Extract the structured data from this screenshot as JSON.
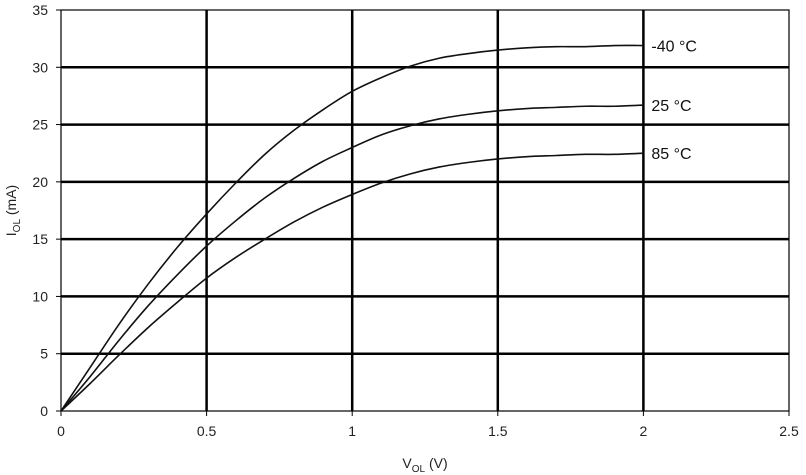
{
  "chart_data": {
    "type": "line",
    "xlabel": {
      "main": "V",
      "sub": "OL",
      "unit": " (V)"
    },
    "ylabel": {
      "main": "I",
      "sub": "OL",
      "unit": " (mA)"
    },
    "xlim": [
      0,
      2.5
    ],
    "ylim": [
      0,
      35
    ],
    "x_ticks": [
      0,
      0.5,
      1,
      1.5,
      2,
      2.5
    ],
    "x_tick_labels": [
      "0",
      "0.5",
      "1",
      "1.5",
      "2",
      "2.5"
    ],
    "y_ticks": [
      0,
      5,
      10,
      15,
      20,
      25,
      30,
      35
    ],
    "y_tick_labels": [
      "0",
      "5",
      "10",
      "15",
      "20",
      "25",
      "30",
      "35"
    ],
    "grid": true,
    "series": [
      {
        "name": "-40 °C",
        "x": [
          0,
          0.1,
          0.2,
          0.3,
          0.4,
          0.5,
          0.6,
          0.7,
          0.8,
          0.9,
          1.0,
          1.1,
          1.2,
          1.3,
          1.4,
          1.5,
          1.6,
          1.7,
          1.8,
          1.9,
          2.0
        ],
        "y": [
          0,
          3.8,
          7.6,
          11.1,
          14.3,
          17.2,
          19.9,
          22.4,
          24.5,
          26.3,
          27.9,
          29.1,
          30.1,
          30.8,
          31.2,
          31.5,
          31.7,
          31.8,
          31.8,
          31.9,
          31.9
        ]
      },
      {
        "name": "25 °C",
        "x": [
          0,
          0.1,
          0.2,
          0.3,
          0.4,
          0.5,
          0.6,
          0.7,
          0.8,
          0.9,
          1.0,
          1.1,
          1.2,
          1.3,
          1.4,
          1.5,
          1.6,
          1.7,
          1.8,
          1.9,
          2.0
        ],
        "y": [
          0,
          3.0,
          6.2,
          9.2,
          11.9,
          14.4,
          16.6,
          18.6,
          20.3,
          21.8,
          23.0,
          24.1,
          24.9,
          25.5,
          25.9,
          26.2,
          26.4,
          26.5,
          26.6,
          26.6,
          26.7
        ]
      },
      {
        "name": "85 °C",
        "x": [
          0,
          0.1,
          0.2,
          0.3,
          0.4,
          0.5,
          0.6,
          0.7,
          0.8,
          0.9,
          1.0,
          1.1,
          1.2,
          1.3,
          1.4,
          1.5,
          1.6,
          1.7,
          1.8,
          1.9,
          2.0
        ],
        "y": [
          0,
          2.4,
          4.9,
          7.3,
          9.5,
          11.6,
          13.4,
          15.0,
          16.5,
          17.8,
          18.9,
          19.9,
          20.7,
          21.3,
          21.7,
          22.0,
          22.2,
          22.3,
          22.4,
          22.4,
          22.5
        ]
      }
    ]
  }
}
